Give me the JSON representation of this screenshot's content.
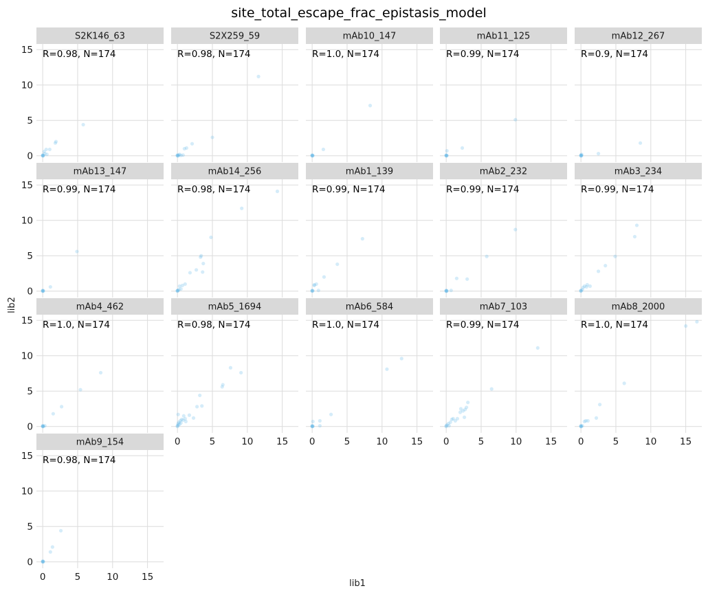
{
  "chart_data": {
    "type": "scatter",
    "title": "site_total_escape_frac_epistasis_model",
    "xlabel": "lib1",
    "ylabel": "lib2",
    "xlim": [
      -0.9,
      17.3
    ],
    "ylim": [
      -0.9,
      15.8
    ],
    "x_ticks": [
      0,
      5,
      10,
      15
    ],
    "y_ticks": [
      0,
      5,
      10,
      15
    ],
    "grid": true,
    "facet_columns": 5,
    "point_color": "#56b4e9",
    "point_alpha": 0.25,
    "panels": [
      {
        "label": "S2K146_63",
        "annotation": "R=0.98, N=174",
        "points": [
          [
            0,
            0
          ],
          [
            0,
            0.05
          ],
          [
            0,
            0.1
          ],
          [
            0.05,
            0
          ],
          [
            0.1,
            0.05
          ],
          [
            0.2,
            0.6
          ],
          [
            0.3,
            0.3
          ],
          [
            0.5,
            0.9
          ],
          [
            0.6,
            0.2
          ],
          [
            1.0,
            0.9
          ],
          [
            1.8,
            1.8
          ],
          [
            1.9,
            2.0
          ],
          [
            5.8,
            4.4
          ]
        ]
      },
      {
        "label": "S2X259_59",
        "annotation": "R=0.98, N=174",
        "points": [
          [
            0,
            0
          ],
          [
            0,
            0.05
          ],
          [
            0,
            0.1
          ],
          [
            0.1,
            0
          ],
          [
            0.2,
            0.1
          ],
          [
            0.3,
            0.2
          ],
          [
            0.5,
            0.05
          ],
          [
            0.8,
            0.1
          ],
          [
            1.0,
            1.0
          ],
          [
            1.3,
            1.1
          ],
          [
            2.1,
            1.7
          ],
          [
            5.0,
            2.6
          ],
          [
            11.6,
            11.2
          ]
        ]
      },
      {
        "label": "mAb10_147",
        "annotation": "R=1.0, N=174",
        "points": [
          [
            0,
            0
          ],
          [
            0,
            0.05
          ],
          [
            0,
            0.1
          ],
          [
            0.05,
            0
          ],
          [
            0.1,
            0.05
          ],
          [
            1.6,
            0.9
          ],
          [
            8.3,
            7.1
          ]
        ]
      },
      {
        "label": "mAb11_125",
        "annotation": "R=0.99, N=174",
        "points": [
          [
            0,
            0
          ],
          [
            0,
            0.05
          ],
          [
            0,
            0.1
          ],
          [
            0.05,
            0
          ],
          [
            0.1,
            0.05
          ],
          [
            0.1,
            0.7
          ],
          [
            2.3,
            1.1
          ],
          [
            9.9,
            5.1
          ]
        ]
      },
      {
        "label": "mAb12_267",
        "annotation": "R=0.9, N=174",
        "points": [
          [
            0,
            0
          ],
          [
            0,
            0.05
          ],
          [
            0,
            0.1
          ],
          [
            0.05,
            0
          ],
          [
            0.1,
            0.05
          ],
          [
            0.1,
            0.2
          ],
          [
            2.5,
            0.3
          ],
          [
            8.5,
            1.8
          ]
        ]
      },
      {
        "label": "mAb13_147",
        "annotation": "R=0.99, N=174",
        "points": [
          [
            0,
            0
          ],
          [
            0,
            0.05
          ],
          [
            0,
            0.1
          ],
          [
            0.05,
            0
          ],
          [
            0.1,
            0.05
          ],
          [
            1.1,
            0.6
          ],
          [
            4.9,
            5.6
          ]
        ]
      },
      {
        "label": "mAb14_256",
        "annotation": "R=0.98, N=174",
        "points": [
          [
            0,
            0
          ],
          [
            0,
            0.05
          ],
          [
            0,
            0.1
          ],
          [
            0.1,
            0.1
          ],
          [
            0.2,
            0.2
          ],
          [
            0.3,
            0.7
          ],
          [
            0.5,
            0.3
          ],
          [
            0.7,
            0.8
          ],
          [
            1.1,
            1.0
          ],
          [
            1.8,
            2.6
          ],
          [
            2.7,
            3.0
          ],
          [
            3.3,
            4.8
          ],
          [
            3.4,
            5.0
          ],
          [
            3.6,
            2.7
          ],
          [
            3.7,
            3.9
          ],
          [
            4.8,
            7.6
          ],
          [
            9.2,
            11.7
          ],
          [
            14.3,
            14.1
          ]
        ]
      },
      {
        "label": "mAb1_139",
        "annotation": "R=0.99, N=174",
        "points": [
          [
            0,
            0
          ],
          [
            0,
            0.05
          ],
          [
            0,
            0.1
          ],
          [
            0.1,
            0.05
          ],
          [
            0.3,
            0.8
          ],
          [
            0.3,
            0.9
          ],
          [
            0.6,
            1.0
          ],
          [
            0.9,
            0.1
          ],
          [
            1.7,
            2.0
          ],
          [
            3.6,
            3.8
          ],
          [
            7.2,
            7.4
          ]
        ]
      },
      {
        "label": "mAb2_232",
        "annotation": "R=0.99, N=174",
        "points": [
          [
            0,
            0
          ],
          [
            0,
            0.05
          ],
          [
            0,
            0.1
          ],
          [
            0.05,
            0
          ],
          [
            0.1,
            0.05
          ],
          [
            0.7,
            0.1
          ],
          [
            1.5,
            1.8
          ],
          [
            3.0,
            1.7
          ],
          [
            5.8,
            4.9
          ],
          [
            9.9,
            8.7
          ]
        ]
      },
      {
        "label": "mAb3_234",
        "annotation": "R=0.99, N=174",
        "points": [
          [
            0,
            0
          ],
          [
            0,
            0.05
          ],
          [
            0,
            0.1
          ],
          [
            0.2,
            0.2
          ],
          [
            0.3,
            0.5
          ],
          [
            0.5,
            0.7
          ],
          [
            0.8,
            0.6
          ],
          [
            0.9,
            0.9
          ],
          [
            1.3,
            0.7
          ],
          [
            2.5,
            2.8
          ],
          [
            3.5,
            3.6
          ],
          [
            4.9,
            4.9
          ],
          [
            7.7,
            7.7
          ],
          [
            8.0,
            9.3
          ]
        ]
      },
      {
        "label": "mAb4_462",
        "annotation": "R=1.0, N=174",
        "points": [
          [
            0,
            0
          ],
          [
            0,
            0.05
          ],
          [
            0,
            0.1
          ],
          [
            0.05,
            0
          ],
          [
            0.1,
            0.05
          ],
          [
            0.3,
            0.1
          ],
          [
            1.5,
            1.8
          ],
          [
            2.7,
            2.8
          ],
          [
            5.4,
            5.2
          ],
          [
            8.3,
            7.6
          ]
        ]
      },
      {
        "label": "mAb5_1694",
        "annotation": "R=0.98, N=174",
        "points": [
          [
            0,
            0
          ],
          [
            0,
            0.1
          ],
          [
            0.1,
            0.2
          ],
          [
            0.1,
            0.4
          ],
          [
            0.2,
            0.6
          ],
          [
            0.3,
            0.3
          ],
          [
            0.4,
            0.8
          ],
          [
            0.5,
            0.5
          ],
          [
            0.6,
            1.0
          ],
          [
            0.8,
            0.9
          ],
          [
            1.1,
            1.1
          ],
          [
            1.2,
            0.7
          ],
          [
            0.1,
            1.7
          ],
          [
            0.9,
            1.5
          ],
          [
            1.7,
            1.6
          ],
          [
            2.3,
            1.2
          ],
          [
            2.8,
            2.8
          ],
          [
            3.2,
            4.4
          ],
          [
            3.5,
            2.9
          ],
          [
            6.4,
            5.6
          ],
          [
            6.5,
            5.9
          ],
          [
            7.6,
            8.3
          ],
          [
            9.1,
            7.6
          ]
        ]
      },
      {
        "label": "mAb6_584",
        "annotation": "R=1.0, N=174",
        "points": [
          [
            0,
            0
          ],
          [
            0,
            0.05
          ],
          [
            0,
            0.1
          ],
          [
            0.05,
            0
          ],
          [
            0.1,
            0.05
          ],
          [
            0.1,
            0.7
          ],
          [
            1.1,
            0.1
          ],
          [
            1.1,
            0.8
          ],
          [
            2.7,
            1.7
          ],
          [
            10.7,
            8.1
          ],
          [
            12.8,
            9.6
          ]
        ]
      },
      {
        "label": "mAb7_103",
        "annotation": "R=0.99, N=174",
        "points": [
          [
            0,
            0
          ],
          [
            0,
            0.1
          ],
          [
            0.1,
            0.2
          ],
          [
            0.3,
            0.4
          ],
          [
            0.4,
            0.1
          ],
          [
            0.6,
            0.6
          ],
          [
            0.8,
            1.0
          ],
          [
            1.0,
            1.1
          ],
          [
            1.3,
            0.8
          ],
          [
            1.6,
            1.1
          ],
          [
            2.0,
            2.0
          ],
          [
            2.1,
            2.5
          ],
          [
            2.4,
            2.2
          ],
          [
            2.6,
            1.3
          ],
          [
            2.7,
            2.4
          ],
          [
            2.9,
            2.7
          ],
          [
            3.1,
            3.4
          ],
          [
            6.5,
            5.3
          ],
          [
            13.1,
            11.1
          ]
        ]
      },
      {
        "label": "mAb8_2000",
        "annotation": "R=1.0, N=174",
        "points": [
          [
            0,
            0
          ],
          [
            0,
            0.05
          ],
          [
            0,
            0.1
          ],
          [
            0.05,
            0
          ],
          [
            0.2,
            0.1
          ],
          [
            0.5,
            0.7
          ],
          [
            0.7,
            0.8
          ],
          [
            1.0,
            0.8
          ],
          [
            2.2,
            1.2
          ],
          [
            2.7,
            3.1
          ],
          [
            6.2,
            6.1
          ],
          [
            15.0,
            14.2
          ],
          [
            16.6,
            14.8
          ]
        ]
      },
      {
        "label": "mAb9_154",
        "annotation": "R=0.98, N=174",
        "points": [
          [
            0,
            0
          ],
          [
            0,
            0.05
          ],
          [
            0,
            0.1
          ],
          [
            0.05,
            0
          ],
          [
            0.1,
            0.05
          ],
          [
            1.1,
            1.4
          ],
          [
            1.4,
            2.1
          ],
          [
            2.6,
            4.4
          ]
        ]
      }
    ]
  }
}
